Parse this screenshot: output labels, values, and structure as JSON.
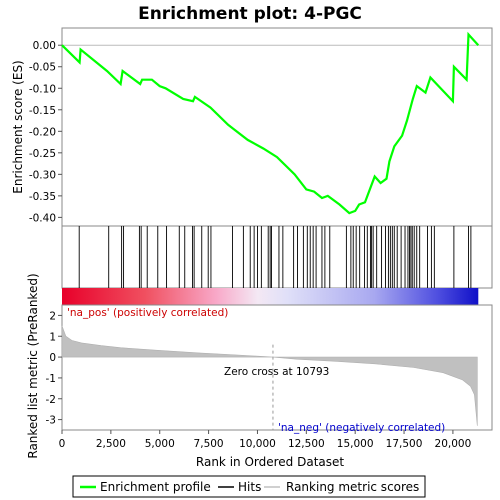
{
  "chart_data": {
    "type": "line",
    "title": "Enrichment plot: 4-PGC",
    "es_panel": {
      "ylabel": "Enrichment score (ES)",
      "ylim": [
        -0.42,
        0.04
      ],
      "yticks": [
        "0.00",
        "-0.05",
        "-0.10",
        "-0.15",
        "-0.20",
        "-0.25",
        "-0.30",
        "-0.35",
        "-0.40"
      ],
      "ytick_values": [
        0.0,
        -0.05,
        -0.1,
        -0.15,
        -0.2,
        -0.25,
        -0.3,
        -0.35,
        -0.4
      ],
      "color": "#00ff00",
      "points": [
        [
          0,
          0.0
        ],
        [
          900,
          -0.04
        ],
        [
          950,
          -0.01
        ],
        [
          2300,
          -0.06
        ],
        [
          3000,
          -0.09
        ],
        [
          3100,
          -0.06
        ],
        [
          4000,
          -0.09
        ],
        [
          4100,
          -0.08
        ],
        [
          4600,
          -0.08
        ],
        [
          5000,
          -0.095
        ],
        [
          5300,
          -0.1
        ],
        [
          6200,
          -0.125
        ],
        [
          6700,
          -0.13
        ],
        [
          6800,
          -0.12
        ],
        [
          7600,
          -0.145
        ],
        [
          8500,
          -0.185
        ],
        [
          9500,
          -0.22
        ],
        [
          10300,
          -0.24
        ],
        [
          11000,
          -0.26
        ],
        [
          11900,
          -0.3
        ],
        [
          12500,
          -0.335
        ],
        [
          12900,
          -0.34
        ],
        [
          13300,
          -0.355
        ],
        [
          13600,
          -0.35
        ],
        [
          14200,
          -0.37
        ],
        [
          14700,
          -0.39
        ],
        [
          15000,
          -0.385
        ],
        [
          15200,
          -0.37
        ],
        [
          15500,
          -0.365
        ],
        [
          16000,
          -0.305
        ],
        [
          16300,
          -0.32
        ],
        [
          16600,
          -0.31
        ],
        [
          16750,
          -0.27
        ],
        [
          17000,
          -0.235
        ],
        [
          17400,
          -0.21
        ],
        [
          17650,
          -0.175
        ],
        [
          17950,
          -0.125
        ],
        [
          18150,
          -0.095
        ],
        [
          18600,
          -0.11
        ],
        [
          18850,
          -0.075
        ],
        [
          20000,
          -0.13
        ],
        [
          20050,
          -0.05
        ],
        [
          20700,
          -0.08
        ],
        [
          20800,
          0.025
        ],
        [
          21300,
          0.0
        ]
      ]
    },
    "hits": [
      880,
      2390,
      3050,
      3150,
      3960,
      4050,
      4360,
      4900,
      5350,
      6000,
      6280,
      6680,
      6760,
      7150,
      7480,
      7620,
      8720,
      9280,
      9630,
      9830,
      10000,
      10200,
      10550,
      10650,
      10720,
      11100,
      11300,
      11850,
      12050,
      12350,
      12550,
      12700,
      12850,
      13000,
      13300,
      13450,
      13700,
      14550,
      14780,
      14900,
      15050,
      15230,
      15480,
      15620,
      15780,
      15840,
      15920,
      16100,
      16350,
      16550,
      16700,
      16800,
      16900,
      17000,
      17150,
      17350,
      17550,
      17700,
      17780,
      17850,
      17920,
      18020,
      18150,
      18300,
      18700,
      18900,
      19050,
      20050,
      20800,
      20920
    ],
    "heatmap": {
      "label_pos": "'na_pos' (positively correlated)",
      "label_neg": "'na_neg' (negatively correlated)"
    },
    "metric_panel": {
      "ylabel": "Ranked list metric (PreRanked)",
      "ylim": [
        -3.5,
        2.5
      ],
      "yticks": [
        "2",
        "1",
        "0",
        "-1",
        "-2",
        "-3"
      ],
      "ytick_values": [
        2,
        1,
        0,
        -1,
        -2,
        -3
      ],
      "color": "#c0c0c0",
      "profile": [
        [
          0,
          1.5
        ],
        [
          200,
          1.0
        ],
        [
          500,
          0.8
        ],
        [
          1000,
          0.68
        ],
        [
          2000,
          0.55
        ],
        [
          3000,
          0.45
        ],
        [
          5000,
          0.32
        ],
        [
          7000,
          0.2
        ],
        [
          9000,
          0.1
        ],
        [
          10793,
          0.0
        ],
        [
          12000,
          -0.1
        ],
        [
          14000,
          -0.2
        ],
        [
          16000,
          -0.32
        ],
        [
          18000,
          -0.5
        ],
        [
          19500,
          -0.75
        ],
        [
          20500,
          -1.1
        ],
        [
          20900,
          -1.4
        ],
        [
          21100,
          -1.8
        ],
        [
          21250,
          -3.3
        ]
      ],
      "zero_cross_label": "Zero cross at 10793",
      "zero_cross": 10793
    },
    "x_axis": {
      "xlabel": "Rank in Ordered Dataset",
      "xlim": [
        0,
        22000
      ],
      "n_ranks": 21300,
      "xticks": [
        "0",
        "2,500",
        "5,000",
        "7,500",
        "10,000",
        "12,500",
        "15,000",
        "17,500",
        "20,000"
      ],
      "xtick_values": [
        0,
        2500,
        5000,
        7500,
        10000,
        12500,
        15000,
        17500,
        20000
      ]
    },
    "legend": {
      "placement": "bottom",
      "items": [
        {
          "label": "Enrichment profile",
          "color": "#00ff00"
        },
        {
          "label": "Hits",
          "color": "#000000"
        },
        {
          "label": "Ranking metric scores",
          "color": "#c0c0c0"
        }
      ]
    }
  }
}
